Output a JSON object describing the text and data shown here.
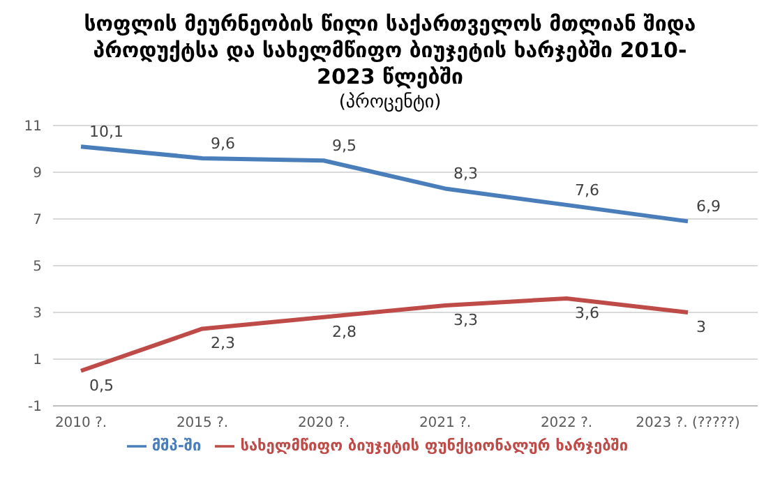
{
  "chart_data": {
    "type": "line",
    "title": "სოფლის მეურნეობის წილი საქართველოს მთლიან შიდა პროდუქტსა და სახელმწიფო ბიუჯეტის ხარჯებში 2010-2023 წლებში",
    "subtitle": "(პროცენტი)",
    "categories": [
      "2010 ?.",
      "2015 ?.",
      "2020 ?.",
      "2021 ?.",
      "2022 ?.",
      "2023 ?. (?????)"
    ],
    "series": [
      {
        "name": "მშპ-ში",
        "color": "#4a7ebb",
        "values": [
          10.1,
          9.6,
          9.5,
          8.3,
          7.6,
          6.9
        ],
        "value_labels": [
          "10,1",
          "9,6",
          "9,5",
          "8,3",
          "7,6",
          "6,9"
        ]
      },
      {
        "name": "სახელმწიფო ბიუჯეტის ფუნქციონალურ ხარჯებში",
        "color": "#be4b48",
        "values": [
          0.5,
          2.3,
          2.8,
          3.3,
          3.6,
          3
        ],
        "value_labels": [
          "0,5",
          "2,3",
          "2,8",
          "3,3",
          "3,6",
          "3"
        ]
      }
    ],
    "ylim": [
      -1,
      11
    ],
    "yticks": [
      -1,
      1,
      3,
      5,
      7,
      9,
      11
    ],
    "grid": "y",
    "legend": "bottom",
    "marker": "none",
    "line_style": "solid"
  }
}
